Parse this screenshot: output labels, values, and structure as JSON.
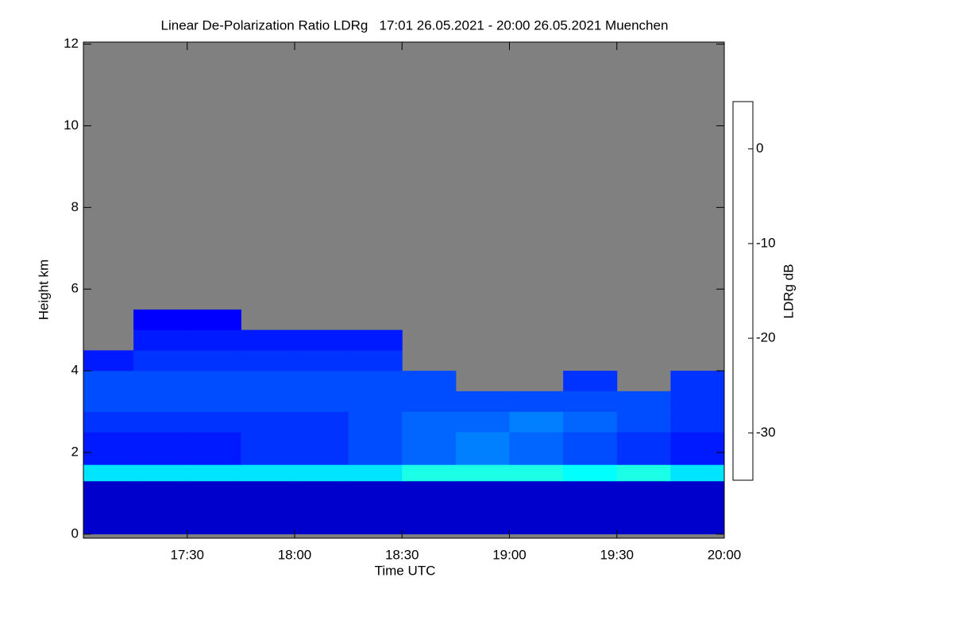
{
  "chart_data": {
    "type": "heatmap",
    "title": "Linear De-Polarization Ratio LDRg   17:01 26.05.2021 - 20:00 26.05.2021 Muenchen",
    "x_label": "Time UTC",
    "y_label": "Height km",
    "colorbar_label": "LDRg dB",
    "colormap": "jet",
    "missing_color": "#808080",
    "xlim": [
      17.0167,
      20.0
    ],
    "ylim": [
      -0.1,
      12.05
    ],
    "clim": [
      -35,
      5
    ],
    "xticks": [
      {
        "value": 17.5,
        "label": "17:30"
      },
      {
        "value": 18.0,
        "label": "18:00"
      },
      {
        "value": 18.5,
        "label": "18:30"
      },
      {
        "value": 19.0,
        "label": "19:00"
      },
      {
        "value": 19.5,
        "label": "19:30"
      },
      {
        "value": 20.0,
        "label": "20:00"
      }
    ],
    "yticks": [
      0,
      2,
      4,
      6,
      8,
      10,
      12
    ],
    "cticks": [
      0,
      -10,
      -20,
      -30
    ],
    "x_edges": [
      17.0167,
      17.25,
      17.5,
      17.75,
      18.0,
      18.25,
      18.5,
      18.75,
      19.0,
      19.25,
      19.5,
      19.75,
      20.0
    ],
    "y_edges": [
      0,
      1.3,
      1.7,
      2.5,
      3,
      3.5,
      4,
      4.5,
      5,
      5.5
    ],
    "z": [
      [
        -32,
        -32,
        -32,
        -32,
        -32,
        -32,
        -32,
        -32,
        -32,
        -32,
        -32,
        -32
      ],
      [
        -21,
        -21,
        -21,
        -21,
        -21,
        -21,
        -19,
        -19,
        -19,
        -20,
        -19,
        -21
      ],
      [
        -29,
        -29,
        -29,
        -28,
        -28,
        -27,
        -26,
        -25,
        -26,
        -27,
        -28,
        -29
      ],
      [
        -28,
        -28,
        -28,
        -28,
        -28,
        -27,
        -26,
        -26,
        -25,
        -26,
        -27,
        -28
      ],
      [
        -27,
        -27,
        -27,
        -27,
        -27,
        -27,
        -27,
        -27,
        -27,
        -27,
        -27,
        -28
      ],
      [
        -27,
        -27,
        -27,
        -27,
        -27,
        -27,
        -27,
        null,
        null,
        -28,
        null,
        -28
      ],
      [
        -29,
        -28,
        -28,
        -28,
        -28,
        -28,
        null,
        null,
        null,
        null,
        null,
        null
      ],
      [
        null,
        -29,
        -29,
        -29,
        -29,
        -29,
        null,
        null,
        null,
        null,
        null,
        null
      ],
      [
        null,
        -30,
        -30,
        null,
        null,
        null,
        null,
        null,
        null,
        null,
        null,
        null
      ]
    ]
  }
}
